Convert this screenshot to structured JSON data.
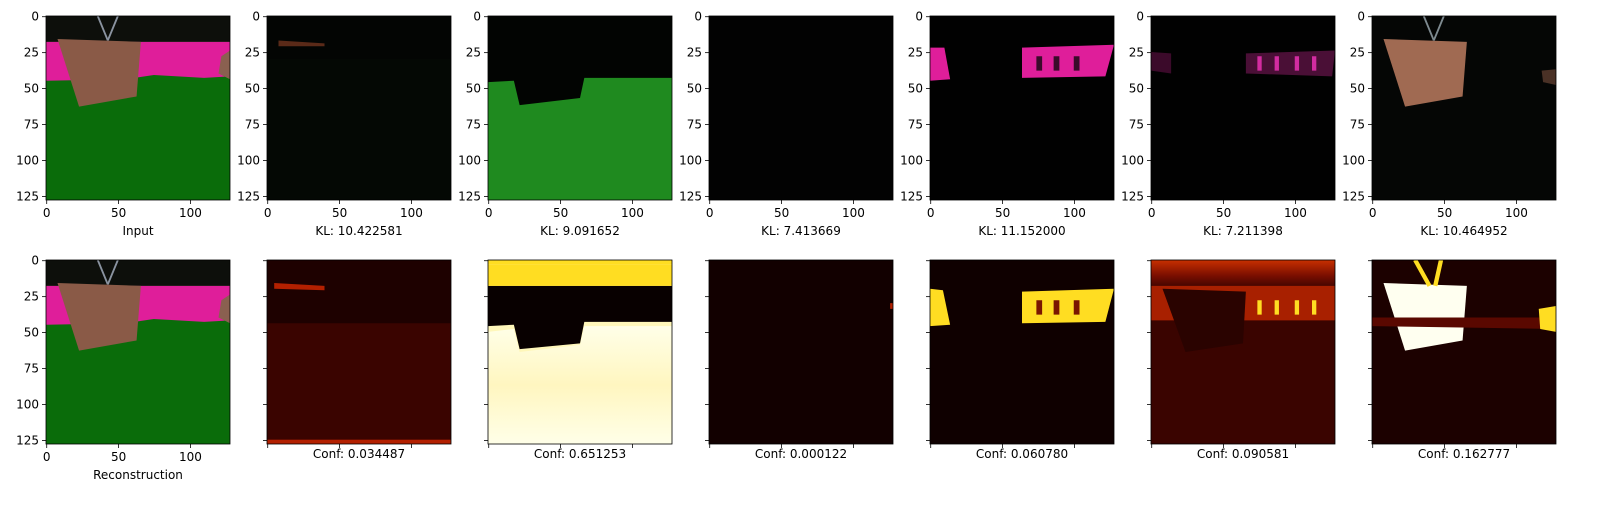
{
  "chart_data": {
    "type": "image_grid",
    "pixel_range": [
      0,
      127
    ],
    "axis_ticks": [
      0,
      25,
      50,
      75,
      100,
      125
    ],
    "axis_ticks_x": [
      0,
      50,
      100
    ],
    "row1": [
      {
        "caption": "Input",
        "kind": "rgb"
      },
      {
        "caption": "KL: 10.422581",
        "kind": "rgb"
      },
      {
        "caption": "KL: 9.091652",
        "kind": "rgb"
      },
      {
        "caption": "KL: 7.413669",
        "kind": "rgb"
      },
      {
        "caption": "KL: 11.152000",
        "kind": "rgb"
      },
      {
        "caption": "KL: 7.211398",
        "kind": "rgb"
      },
      {
        "caption": "KL: 10.464952",
        "kind": "rgb"
      }
    ],
    "row2": [
      {
        "caption": "Reconstruction",
        "kind": "rgb"
      },
      {
        "caption": "Conf: 0.034487",
        "kind": "heatmap"
      },
      {
        "caption": "Conf: 0.651253",
        "kind": "heatmap"
      },
      {
        "caption": "Conf: 0.000122",
        "kind": "heatmap"
      },
      {
        "caption": "Conf: 0.060780",
        "kind": "heatmap"
      },
      {
        "caption": "Conf: 0.090581",
        "kind": "heatmap"
      },
      {
        "caption": "Conf: 0.162777",
        "kind": "heatmap"
      }
    ],
    "colors": {
      "sky": "#0d0f0b",
      "wall": "#df1e9a",
      "floor": "#0a6c0a",
      "box": "#8a5a47",
      "heat_dark": "#150000",
      "heat_mid": "#b32000",
      "heat_hot": "#ffdd22",
      "heat_white": "#fffff0"
    }
  }
}
